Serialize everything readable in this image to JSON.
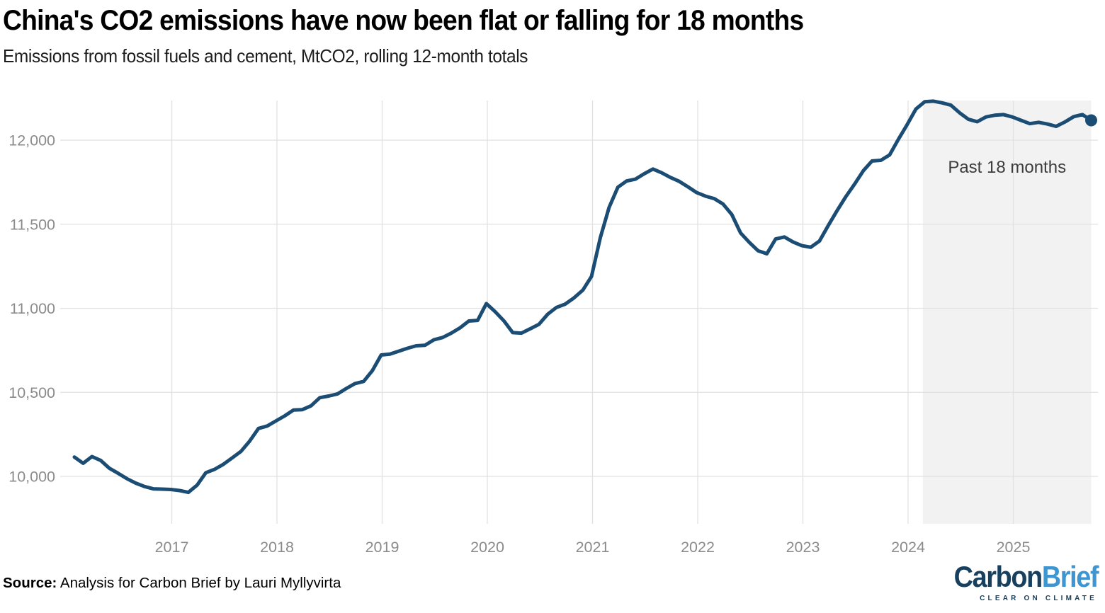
{
  "header": {
    "title": "China's CO2 emissions have now been flat or falling for 18 months",
    "subtitle": "Emissions from fossil fuels and cement, MtCO2, rolling 12-month totals"
  },
  "footer": {
    "source_label": "Source:",
    "source_text": " Analysis for Carbon Brief by Lauri Myllyvirta",
    "logo": {
      "part1": "Carbon",
      "part2": "Brief",
      "tagline": "CLEAR ON CLIMATE"
    }
  },
  "colors": {
    "line": "#1a4c74",
    "grid": "#e1e1e1",
    "band": "#f2f2f2",
    "axis_text": "#8b8b8b",
    "annotation_text": "#3c3c3c",
    "logo_navy": "#16405e",
    "logo_blue": "#3d96d2"
  },
  "chart_data": {
    "type": "line",
    "title": "China's CO2 emissions have now been flat or falling for 18 months",
    "subtitle": "Emissions from fossil fuels and cement, MtCO2, rolling 12-month totals",
    "unit": "MtCO2",
    "frequency": "monthly rolling 12-month totals",
    "start_month": "2016-01",
    "end_month": "2025-09",
    "values": [
      10115,
      10078,
      10118,
      10095,
      10048,
      10018,
      9986,
      9960,
      9940,
      9926,
      9924,
      9922,
      9916,
      9905,
      9948,
      10022,
      10042,
      10072,
      10110,
      10148,
      10210,
      10285,
      10300,
      10330,
      10360,
      10395,
      10397,
      10420,
      10468,
      10478,
      10490,
      10522,
      10552,
      10565,
      10630,
      10722,
      10727,
      10745,
      10762,
      10777,
      10780,
      10812,
      10826,
      10852,
      10884,
      10924,
      10928,
      11028,
      10980,
      10925,
      10855,
      10852,
      10878,
      10905,
      10965,
      11005,
      11025,
      11062,
      11108,
      11190,
      11420,
      11600,
      11720,
      11757,
      11768,
      11800,
      11828,
      11806,
      11778,
      11755,
      11722,
      11688,
      11667,
      11652,
      11620,
      11558,
      11448,
      11392,
      11342,
      11324,
      11412,
      11424,
      11394,
      11372,
      11363,
      11400,
      11492,
      11580,
      11663,
      11738,
      11818,
      11876,
      11880,
      11912,
      12005,
      12092,
      12185,
      12228,
      12232,
      12222,
      12208,
      12162,
      12124,
      12110,
      12138,
      12148,
      12152,
      12138,
      12118,
      12098,
      12106,
      12096,
      12082,
      12108,
      12140,
      12152,
      12118
    ],
    "y_ticks": [
      10000,
      10500,
      11000,
      11500,
      12000
    ],
    "y_tick_labels": [
      "10,000",
      "10,500",
      "11,000",
      "11,500",
      "12,000"
    ],
    "x_ticks": [
      2017,
      2018,
      2019,
      2020,
      2021,
      2022,
      2023,
      2024,
      2025
    ],
    "ylim": [
      9718,
      12232
    ],
    "grid": true,
    "annotation": {
      "label": "Past 18 months",
      "start": "2024-03",
      "end": "2025-09"
    },
    "end_dot": true
  }
}
